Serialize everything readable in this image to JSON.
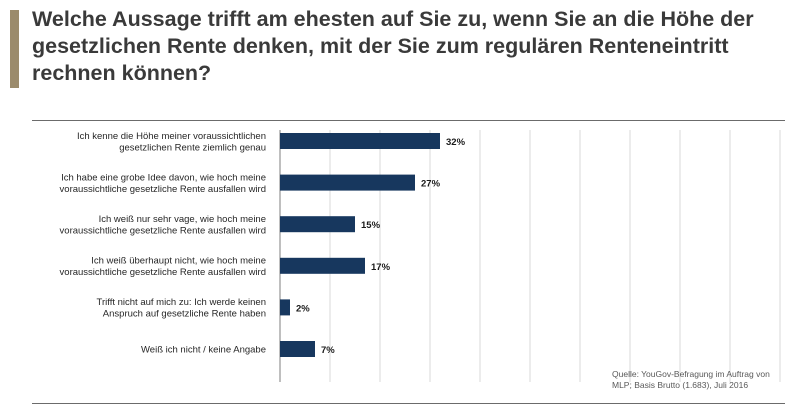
{
  "title": "Welche Aussage trifft am ehesten auf Sie zu, wenn Sie an die Höhe der gesetzlichen Rente denken, mit der Sie zum regulären Renteneintritt rechnen können?",
  "source": "Quelle: YouGov-Befragung im Auftrag von MLP; Basis Brutto (1.683), Juli 2016",
  "colors": {
    "bar": "#17375e",
    "accent": "#9b8b6c",
    "grid": "#d9d9d9"
  },
  "chart_data": {
    "type": "bar",
    "orientation": "horizontal",
    "categories": [
      [
        "Ich kenne die Höhe meiner voraussichtlichen",
        "gesetzlichen Rente ziemlich genau"
      ],
      [
        "Ich habe eine grobe Idee davon, wie hoch meine",
        "voraussichtliche gesetzliche Rente ausfallen wird"
      ],
      [
        "Ich weiß nur sehr vage, wie hoch meine",
        "voraussichtliche gesetzliche Rente ausfallen wird"
      ],
      [
        "Ich weiß überhaupt nicht, wie hoch meine",
        "voraussichtliche gesetzliche Rente ausfallen wird"
      ],
      [
        "Trifft nicht auf mich zu: Ich werde keinen",
        "Anspruch auf gesetzliche Rente haben"
      ],
      [
        "Weiß ich nicht / keine Angabe"
      ]
    ],
    "values": [
      32,
      27,
      15,
      17,
      2,
      7
    ],
    "value_labels": [
      "32%",
      "27%",
      "15%",
      "17%",
      "2%",
      "7%"
    ],
    "xlim": [
      0,
      100
    ],
    "grid": true
  }
}
